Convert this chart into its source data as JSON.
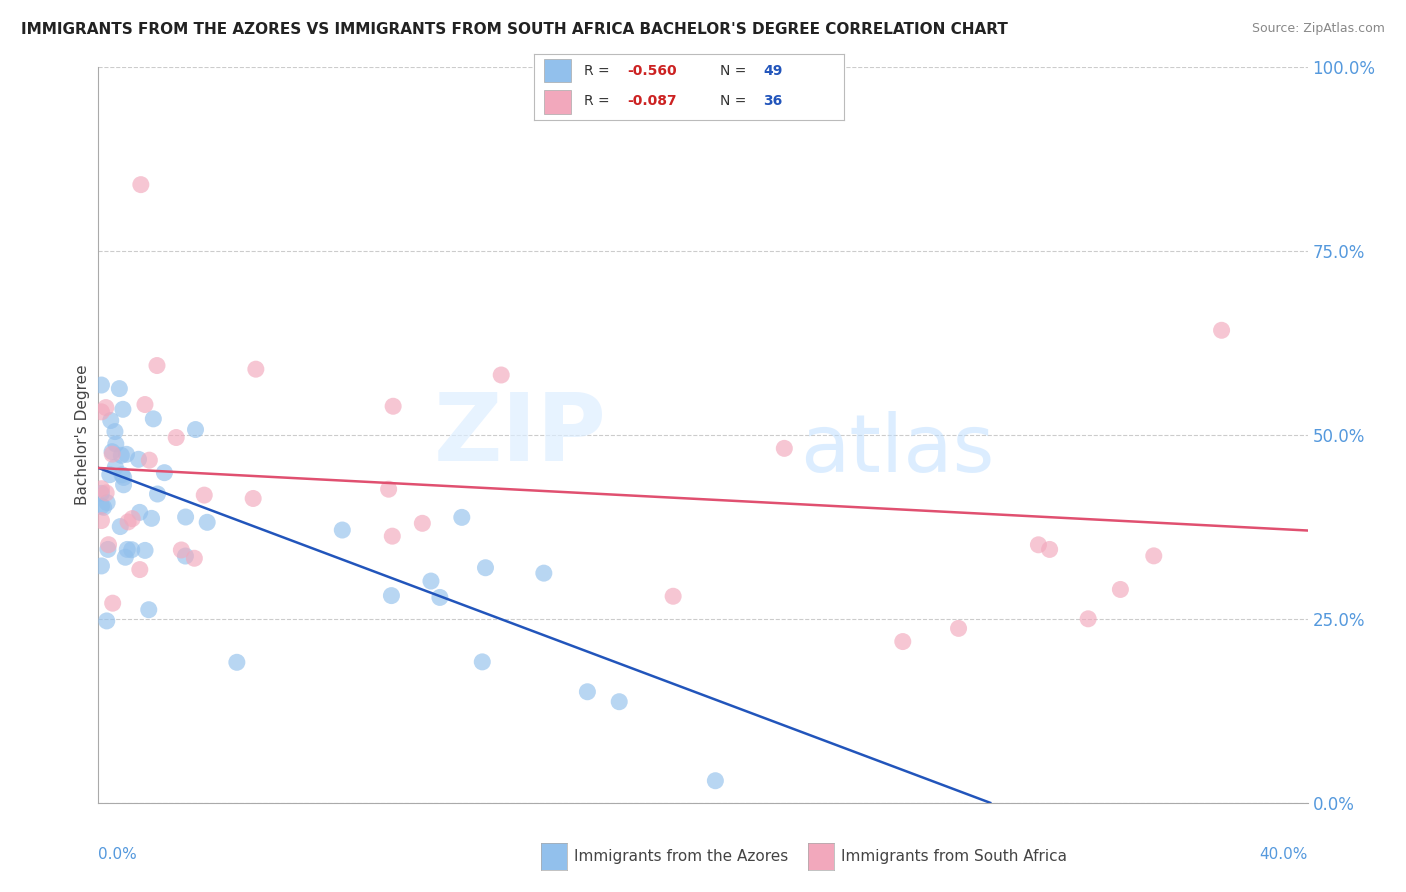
{
  "title": "IMMIGRANTS FROM THE AZORES VS IMMIGRANTS FROM SOUTH AFRICA BACHELOR'S DEGREE CORRELATION CHART",
  "source": "Source: ZipAtlas.com",
  "xlabel_azores": "Immigrants from the Azores",
  "xlabel_sa": "Immigrants from South Africa",
  "ylabel": "Bachelor's Degree",
  "legend_azores_r": "-0.560",
  "legend_azores_n": "49",
  "legend_sa_r": "-0.087",
  "legend_sa_n": "36",
  "color_azores": "#92C0EC",
  "color_sa": "#F2A8BC",
  "line_color_azores": "#2255BB",
  "line_color_sa": "#E05070",
  "xlim": [
    0.0,
    0.4
  ],
  "ylim": [
    0.0,
    1.0
  ],
  "ytick_right": [
    0.0,
    0.25,
    0.5,
    0.75,
    1.0
  ],
  "ytick_right_labels": [
    "0.0%",
    "25.0%",
    "50.0%",
    "75.0%",
    "100.0%"
  ],
  "xtick_bottom_labels": [
    "0.0%",
    "40.0%"
  ],
  "watermark_zip": "ZIP",
  "watermark_atlas": "atlas",
  "background_color": "#FFFFFF",
  "grid_color": "#CCCCCC",
  "az_line_x0": 0.0,
  "az_line_y0": 0.455,
  "az_line_x1": 0.295,
  "az_line_y1": 0.0,
  "sa_line_x0": 0.0,
  "sa_line_y0": 0.455,
  "sa_line_x1": 0.4,
  "sa_line_y1": 0.37
}
